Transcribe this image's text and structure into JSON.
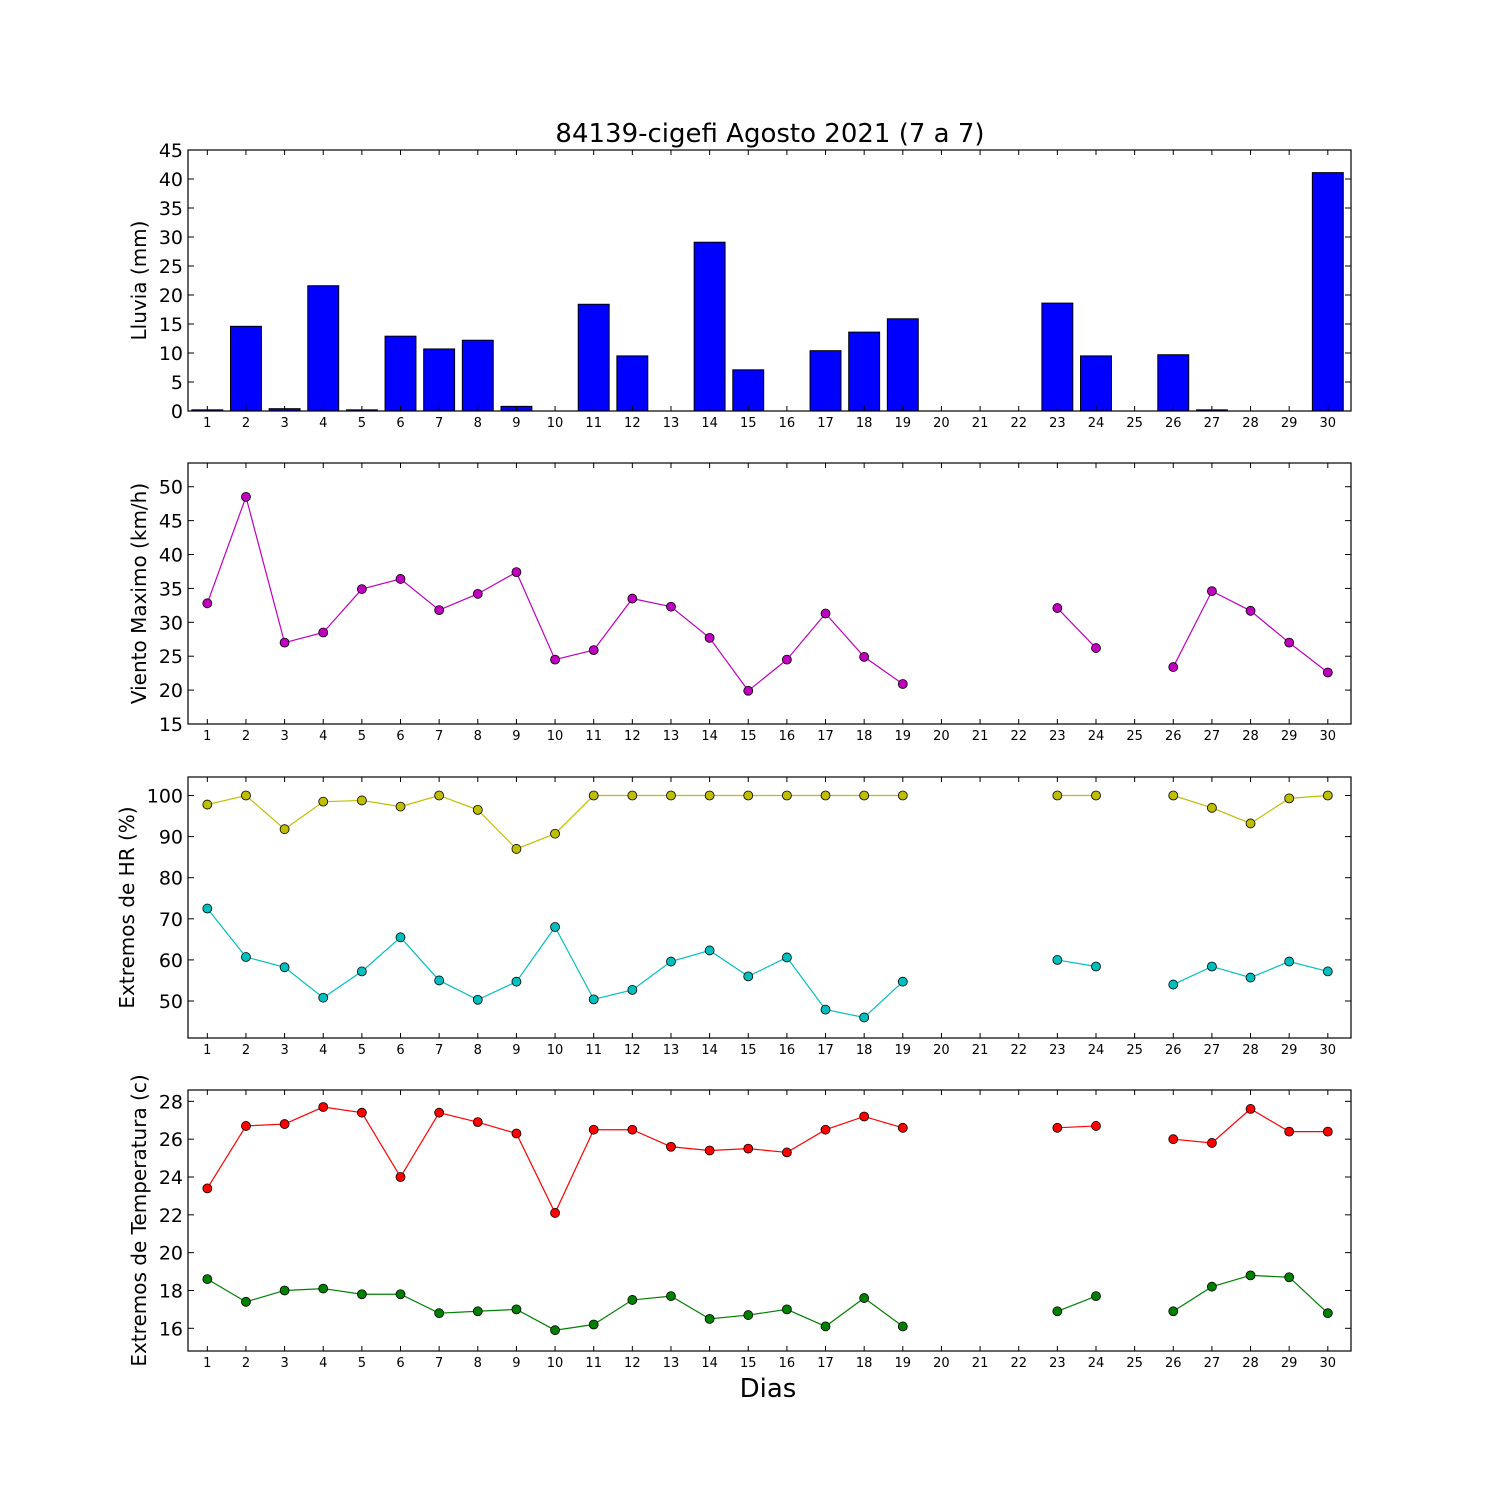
{
  "chart_data": [
    {
      "type": "bar",
      "title": "84139-cigefi Agosto 2021  (7 a 7)",
      "ylabel": "Lluvia (mm)",
      "ylim": [
        0,
        45
      ],
      "yticks": [
        0,
        5,
        10,
        15,
        20,
        25,
        30,
        35,
        40,
        45
      ],
      "x": [
        1,
        2,
        3,
        4,
        5,
        6,
        7,
        8,
        9,
        10,
        11,
        12,
        13,
        14,
        15,
        16,
        17,
        18,
        19,
        20,
        21,
        22,
        23,
        24,
        25,
        26,
        27,
        28,
        29,
        30
      ],
      "series": [
        {
          "color": "#0000ff",
          "values": [
            0.2,
            14.6,
            0.4,
            21.6,
            0.2,
            12.9,
            10.7,
            12.2,
            0.8,
            0,
            18.4,
            9.5,
            0,
            29.1,
            7.1,
            0,
            10.4,
            13.6,
            15.9,
            0,
            0,
            0,
            18.6,
            9.5,
            0,
            9.7,
            0.2,
            0,
            0,
            41.1
          ]
        }
      ]
    },
    {
      "type": "line",
      "ylabel": "Viento Maximo (km/h)",
      "ylim": [
        15,
        53.5
      ],
      "yticks": [
        15,
        20,
        25,
        30,
        35,
        40,
        45,
        50
      ],
      "x": [
        1,
        2,
        3,
        4,
        5,
        6,
        7,
        8,
        9,
        10,
        11,
        12,
        13,
        14,
        15,
        16,
        17,
        18,
        19,
        20,
        21,
        22,
        23,
        24,
        25,
        26,
        27,
        28,
        29,
        30
      ],
      "series": [
        {
          "color": "#bf00bf",
          "values": [
            32.8,
            48.5,
            27.0,
            28.5,
            34.9,
            36.4,
            31.8,
            34.2,
            37.4,
            24.5,
            25.9,
            33.5,
            32.3,
            27.7,
            19.9,
            24.5,
            31.3,
            24.9,
            20.9,
            null,
            null,
            null,
            32.1,
            26.2,
            null,
            23.4,
            34.6,
            31.7,
            27.0,
            22.6
          ]
        }
      ]
    },
    {
      "type": "line",
      "ylabel": "Extremos de HR (%)",
      "ylim": [
        41,
        104.5
      ],
      "yticks": [
        50,
        60,
        70,
        80,
        90,
        100
      ],
      "x": [
        1,
        2,
        3,
        4,
        5,
        6,
        7,
        8,
        9,
        10,
        11,
        12,
        13,
        14,
        15,
        16,
        17,
        18,
        19,
        20,
        21,
        22,
        23,
        24,
        25,
        26,
        27,
        28,
        29,
        30
      ],
      "series": [
        {
          "color": "#bfbf00",
          "values": [
            97.8,
            100,
            91.8,
            98.5,
            98.8,
            97.3,
            100,
            96.5,
            87.0,
            90.7,
            100,
            100,
            100,
            100,
            100,
            100,
            100,
            100,
            100,
            null,
            null,
            null,
            100,
            100,
            null,
            100,
            97.0,
            93.2,
            99.3,
            100
          ]
        },
        {
          "color": "#00bfbf",
          "values": [
            72.5,
            60.7,
            58.2,
            50.8,
            57.2,
            65.5,
            55.0,
            50.3,
            54.7,
            68.0,
            50.4,
            52.7,
            59.6,
            62.3,
            56.0,
            60.6,
            47.9,
            46.0,
            54.7,
            null,
            null,
            null,
            60.0,
            58.4,
            null,
            54.0,
            58.4,
            55.7,
            59.6,
            57.2
          ]
        }
      ]
    },
    {
      "type": "line",
      "ylabel": "Extremos de Temperatura (c)",
      "xlabel": "Dias",
      "ylim": [
        14.8,
        28.6
      ],
      "yticks": [
        16,
        18,
        20,
        22,
        24,
        26,
        28
      ],
      "x": [
        1,
        2,
        3,
        4,
        5,
        6,
        7,
        8,
        9,
        10,
        11,
        12,
        13,
        14,
        15,
        16,
        17,
        18,
        19,
        20,
        21,
        22,
        23,
        24,
        25,
        26,
        27,
        28,
        29,
        30
      ],
      "series": [
        {
          "color": "#ff0000",
          "values": [
            23.4,
            26.7,
            26.8,
            27.7,
            27.4,
            24.0,
            27.4,
            26.9,
            26.3,
            22.1,
            26.5,
            26.5,
            25.6,
            25.4,
            25.5,
            25.3,
            26.5,
            27.2,
            26.6,
            null,
            null,
            null,
            26.6,
            26.7,
            null,
            26.0,
            25.8,
            27.6,
            26.4,
            26.4
          ]
        },
        {
          "color": "#008000",
          "values": [
            18.6,
            17.4,
            18.0,
            18.1,
            17.8,
            17.8,
            16.8,
            16.9,
            17.0,
            15.9,
            16.2,
            17.5,
            17.7,
            16.5,
            16.7,
            17.0,
            16.1,
            17.6,
            16.1,
            null,
            null,
            null,
            16.9,
            17.7,
            null,
            16.9,
            18.2,
            18.8,
            18.7,
            16.8
          ]
        }
      ]
    }
  ]
}
